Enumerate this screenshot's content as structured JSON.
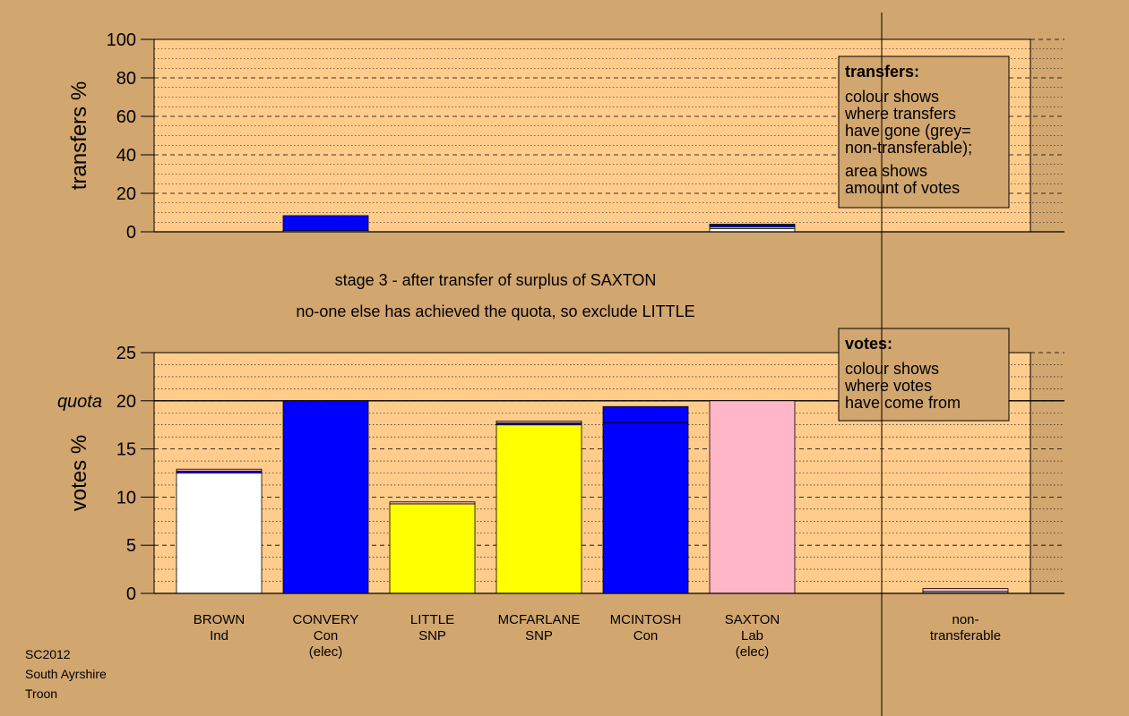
{
  "chart_data": [
    {
      "name": "transfers-chart",
      "type": "bar",
      "ylabel": "transfers %",
      "ylim": [
        0,
        100
      ],
      "yticks": [
        0,
        20,
        40,
        60,
        80,
        100
      ],
      "grid": true,
      "categories": [
        "BROWN",
        "CONVERY",
        "LITTLE",
        "MCFARLANE",
        "MCINTOSH",
        "SAXTON",
        "non-transferable"
      ],
      "segments": [
        [],
        [
          {
            "value": 0.6,
            "color": "#ffffff"
          },
          {
            "value": 7.8,
            "color": "#0000ff"
          }
        ],
        [],
        [],
        [],
        [
          {
            "value": 1.7,
            "color": "#ffffff"
          },
          {
            "value": 0.8,
            "color": "#ffff00"
          },
          {
            "value": 1.0,
            "color": "#0000ff"
          },
          {
            "value": 0.5,
            "color": "#b5b5b5"
          }
        ],
        []
      ],
      "legend": {
        "title": "transfers:",
        "lines1": [
          "colour shows",
          "where transfers",
          "have gone (grey=",
          "non-transferable);"
        ],
        "lines2": [
          "area shows",
          "amount of votes"
        ]
      }
    },
    {
      "name": "votes-chart",
      "type": "bar",
      "ylabel": "votes %",
      "ylim": [
        0,
        25
      ],
      "yticks": [
        0,
        5,
        10,
        15,
        20,
        25
      ],
      "grid": true,
      "quota_value": 20,
      "quota_label": "quota",
      "categories": [
        "BROWN",
        "CONVERY",
        "LITTLE",
        "MCFARLANE",
        "MCINTOSH",
        "SAXTON",
        "non-transferable"
      ],
      "segments": [
        [
          {
            "value": 12.5,
            "color": "#ffffff"
          },
          {
            "value": 0.2,
            "color": "#0000ff"
          },
          {
            "value": 0.2,
            "color": "#ffb6c8"
          }
        ],
        [
          {
            "value": 20.0,
            "color": "#0000ff"
          }
        ],
        [
          {
            "value": 9.3,
            "color": "#ffff00"
          },
          {
            "value": 0.2,
            "color": "#ffb6c8"
          }
        ],
        [
          {
            "value": 17.5,
            "color": "#ffff00"
          },
          {
            "value": 0.2,
            "color": "#0000ff"
          },
          {
            "value": 0.2,
            "color": "#ffb6c8"
          }
        ],
        [
          {
            "value": 17.7,
            "color": "#0000ff"
          },
          {
            "value": 1.7,
            "color": "#0000ff"
          }
        ],
        [
          {
            "value": 20.0,
            "color": "#ffb6c8"
          }
        ],
        [
          {
            "value": 0.2,
            "color": "#b5b5b5"
          },
          {
            "value": 0.3,
            "color": "#ffb6c8"
          }
        ]
      ],
      "legend": {
        "title": "votes:",
        "lines1": [
          "colour shows",
          "where votes",
          "have come from"
        ]
      }
    }
  ],
  "stage_lines": [
    "stage 3 - after transfer of surplus of SAXTON",
    "no-one else has achieved the quota, so exclude LITTLE"
  ],
  "candidates": [
    {
      "lines": [
        "BROWN",
        "Ind"
      ]
    },
    {
      "lines": [
        "CONVERY",
        "Con",
        "(elec)"
      ]
    },
    {
      "lines": [
        "LITTLE",
        "SNP"
      ]
    },
    {
      "lines": [
        "MCFARLANE",
        "SNP"
      ]
    },
    {
      "lines": [
        "MCINTOSH",
        "Con"
      ]
    },
    {
      "lines": [
        "SAXTON",
        "Lab",
        "(elec)"
      ]
    },
    {
      "lines": [
        "non-",
        "transferable"
      ]
    }
  ],
  "footer": {
    "line1": "SC2012",
    "line2": "South Ayrshire",
    "line3": "Troon"
  },
  "colors": {
    "page_background": "#d2a66f",
    "plot_background": "#ffcc8c",
    "legend_background": "#d2a66f"
  }
}
